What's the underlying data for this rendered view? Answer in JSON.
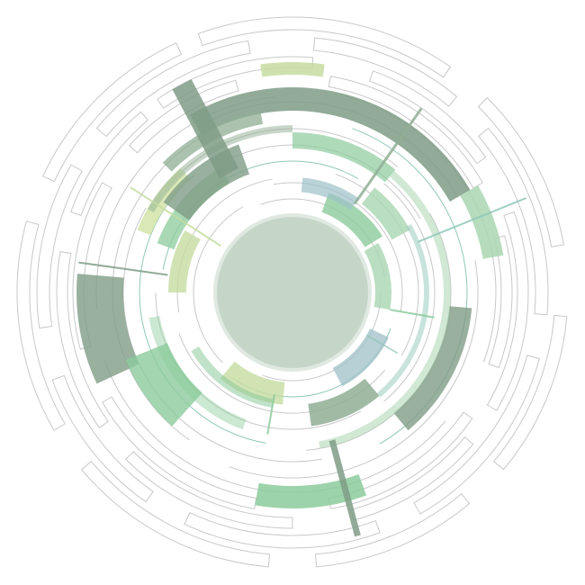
{
  "palette": {
    "background": "#ffffff",
    "outline": "#c8c8c8",
    "hub": "#c5d6c8",
    "hub_stroke": "#dfe9e1",
    "sage_dark": "#7f9c86",
    "sage": "#8fae94",
    "mint": "#8ccb9c",
    "light_mint": "#a9d6b1",
    "lime": "#c5dca0",
    "pale_lime": "#d2e4a8",
    "steel_blue": "#9dc0c7",
    "teal_line": "#8fc7b8"
  },
  "graphic": {
    "kind": "radial-segment-graphic",
    "text": []
  }
}
